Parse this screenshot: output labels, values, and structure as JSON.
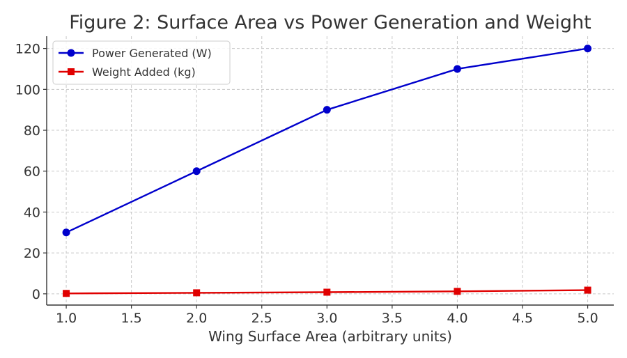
{
  "chart_data": {
    "type": "line",
    "title": "Figure 2: Surface Area vs Power Generation and Weight",
    "xlabel": "Wing Surface Area (arbitrary units)",
    "ylabel": "",
    "xlim": [
      0.85,
      5.2
    ],
    "ylim": [
      -5.5,
      126
    ],
    "xticks": [
      1.0,
      1.5,
      2.0,
      2.5,
      3.0,
      3.5,
      4.0,
      4.5,
      5.0
    ],
    "xtick_labels": [
      "1.0",
      "1.5",
      "2.0",
      "2.5",
      "3.0",
      "3.5",
      "4.0",
      "4.5",
      "5.0"
    ],
    "yticks": [
      0,
      20,
      40,
      60,
      80,
      100,
      120
    ],
    "ytick_labels": [
      "0",
      "20",
      "40",
      "60",
      "80",
      "100",
      "120"
    ],
    "grid": true,
    "legend_position": "top-left",
    "x": [
      1,
      2,
      3,
      4,
      5
    ],
    "series": [
      {
        "name": "Power Generated (W)",
        "values": [
          30,
          60,
          90,
          110,
          120
        ],
        "color": "#0000cc",
        "marker": "circle"
      },
      {
        "name": "Weight Added (kg)",
        "values": [
          0.2,
          0.5,
          0.8,
          1.2,
          1.8
        ],
        "color": "#e00000",
        "marker": "square"
      }
    ]
  }
}
